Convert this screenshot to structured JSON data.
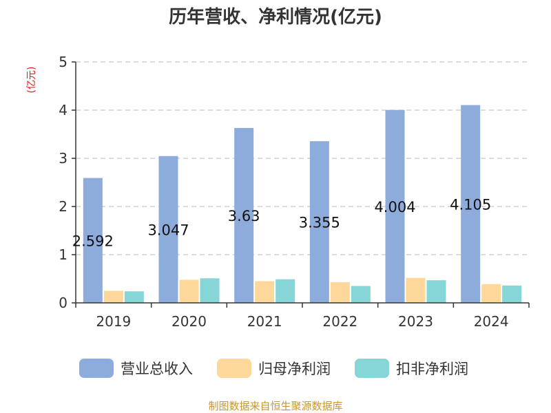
{
  "chart_data": {
    "type": "bar",
    "title": "历年营收、净利情况(亿元)",
    "unit_label": "(亿元)",
    "categories": [
      "2019",
      "2020",
      "2021",
      "2022",
      "2023",
      "2024"
    ],
    "series": [
      {
        "name": "营业总收入",
        "color": "#8eacdb",
        "values": [
          2.592,
          3.047,
          3.63,
          3.355,
          4.004,
          4.105
        ],
        "labels": [
          "2.592",
          "3.047",
          "3.63",
          "3.355",
          "4.004",
          "4.105"
        ]
      },
      {
        "name": "归母净利润",
        "color": "#fdd89a",
        "values": [
          0.25,
          0.48,
          0.45,
          0.43,
          0.52,
          0.39
        ]
      },
      {
        "name": "扣非净利润",
        "color": "#86d6d8",
        "values": [
          0.24,
          0.51,
          0.49,
          0.35,
          0.47,
          0.36
        ]
      }
    ],
    "ylim": [
      0,
      5
    ],
    "yticks": [
      "0",
      "1",
      "2",
      "3",
      "4",
      "5"
    ],
    "grid": true,
    "legend_position": "bottom"
  },
  "source": "制图数据来自恒生聚源数据库"
}
